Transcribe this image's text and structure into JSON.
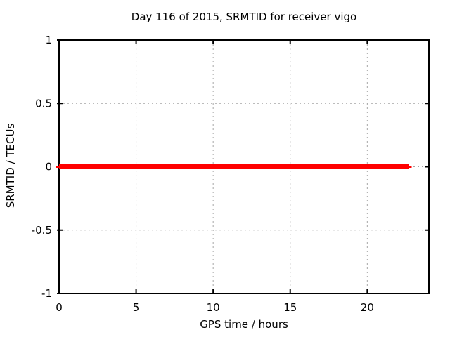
{
  "figure": {
    "background": "#ffffff"
  },
  "chart_data": {
    "type": "line",
    "title": "Day 116 of 2015, SRMTID for receiver vigo",
    "xlabel": "GPS time / hours",
    "ylabel": "SRMTID / TECUs",
    "xlim": [
      0,
      24
    ],
    "ylim": [
      -1,
      1
    ],
    "xticks": [
      0,
      5,
      10,
      15,
      20
    ],
    "yticks": [
      -1,
      -0.5,
      0,
      0.5,
      1
    ],
    "grid": true,
    "legend": "none",
    "border_color": "#000000",
    "grid_color": "#a6a6a6",
    "text_color": "#000000",
    "series": [
      {
        "name": "SRMTID",
        "color": "#ff0000",
        "line_width": 7,
        "x": [
          0,
          22.7
        ],
        "y": [
          0,
          0
        ]
      }
    ]
  }
}
